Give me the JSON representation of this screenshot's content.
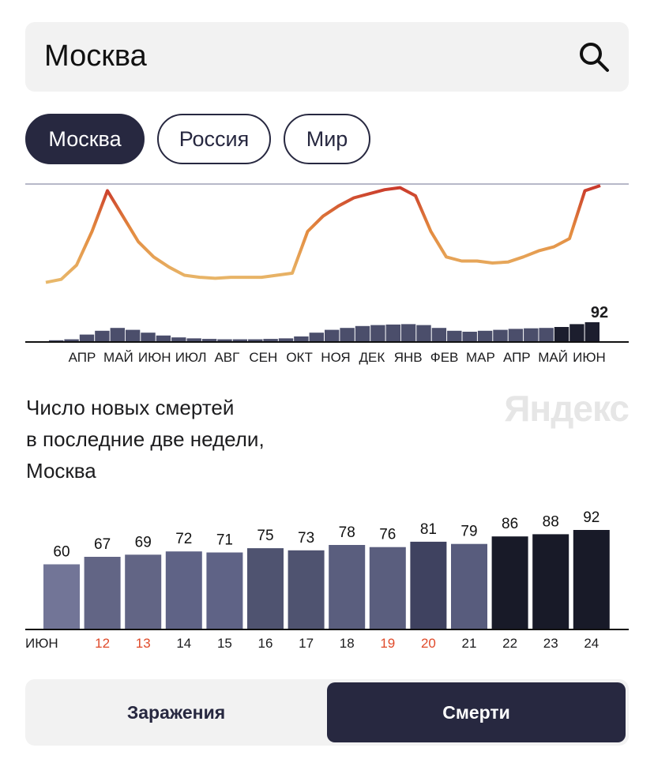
{
  "search": {
    "value": "Москва"
  },
  "region_tabs": [
    {
      "label": "Москва",
      "active": true
    },
    {
      "label": "Россия",
      "active": false
    },
    {
      "label": "Мир",
      "active": false
    }
  ],
  "overview_chart": {
    "months": [
      "АПР",
      "МАЙ",
      "ИЮН",
      "ИЮЛ",
      "АВГ",
      "СЕН",
      "ОКТ",
      "НОЯ",
      "ДЕК",
      "ЯНВ",
      "ФЕВ",
      "МАР",
      "АПР",
      "МАЙ",
      "ИЮН"
    ],
    "latest_value": "92",
    "trend": [
      0.05,
      0.08,
      0.22,
      0.55,
      0.95,
      0.7,
      0.45,
      0.3,
      0.2,
      0.12,
      0.1,
      0.09,
      0.1,
      0.1,
      0.1,
      0.12,
      0.14,
      0.55,
      0.7,
      0.8,
      0.88,
      0.92,
      0.96,
      0.98,
      0.9,
      0.55,
      0.3,
      0.26,
      0.26,
      0.24,
      0.25,
      0.3,
      0.36,
      0.4,
      0.48,
      0.95,
      1.0
    ],
    "daily_bars": [
      0.05,
      0.1,
      0.35,
      0.55,
      0.7,
      0.6,
      0.45,
      0.3,
      0.2,
      0.15,
      0.12,
      0.1,
      0.1,
      0.1,
      0.12,
      0.15,
      0.25,
      0.45,
      0.6,
      0.7,
      0.8,
      0.85,
      0.88,
      0.9,
      0.85,
      0.7,
      0.55,
      0.5,
      0.55,
      0.6,
      0.65,
      0.68,
      0.7,
      0.75,
      0.9,
      1.0
    ]
  },
  "caption": {
    "lines": [
      "Число новых смертей",
      "в последние две недели,",
      "Москва"
    ],
    "brand": "Яндекс"
  },
  "chart_data": {
    "type": "bar",
    "categories": [
      "ИЮН 11",
      "12",
      "13",
      "14",
      "15",
      "16",
      "17",
      "18",
      "19",
      "20",
      "21",
      "22",
      "23",
      "24"
    ],
    "values": [
      60,
      67,
      69,
      72,
      71,
      75,
      73,
      78,
      76,
      81,
      79,
      86,
      88,
      92
    ],
    "x_labels": [
      "ИЮН",
      "12",
      "13",
      "14",
      "15",
      "16",
      "17",
      "18",
      "19",
      "20",
      "21",
      "22",
      "23",
      "24"
    ],
    "weekend_labels": [
      "12",
      "13",
      "19",
      "20"
    ],
    "bar_colors": [
      "#727597",
      "#626585",
      "#626585",
      "#5f6386",
      "#5f6386",
      "#4f5370",
      "#4f5370",
      "#5a5e7e",
      "#5a5e7e",
      "#3f4260",
      "#585c7d",
      "#181a28",
      "#181a28",
      "#181a28"
    ],
    "ylim": [
      0,
      92
    ]
  },
  "toggle": {
    "options": [
      {
        "label": "Заражения",
        "active": false
      },
      {
        "label": "Смерти",
        "active": true
      }
    ]
  },
  "colors": {
    "accent": "#272840",
    "weekend": "#e04a2a"
  }
}
